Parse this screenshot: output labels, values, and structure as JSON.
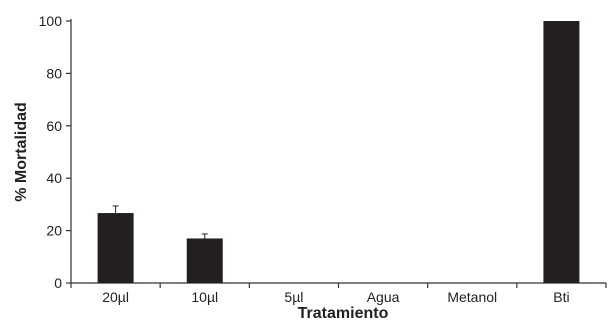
{
  "chart_data": {
    "type": "bar",
    "title": "",
    "xlabel": "Tratamiento",
    "ylabel": "% Mortalidad",
    "categories": [
      "20µl",
      "10µl",
      "5µl",
      "Agua",
      "Metanol",
      "Bti"
    ],
    "values": [
      26.7,
      17.0,
      0,
      0,
      0,
      100
    ],
    "error": [
      2.7,
      1.7,
      0,
      0,
      0,
      0
    ],
    "ylim": [
      0,
      100
    ],
    "yticks": [
      "0",
      "20",
      "40",
      "60",
      "80",
      "100"
    ],
    "grid": false,
    "legend": "none",
    "colors": {
      "bar": "#231f20",
      "axis": "#333333",
      "text": "#222222"
    }
  }
}
